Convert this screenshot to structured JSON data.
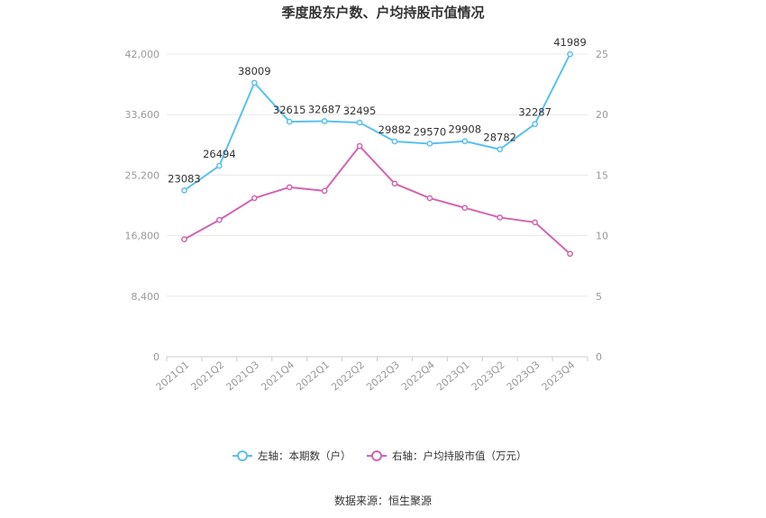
{
  "chart_data": {
    "type": "line",
    "title": "季度股东户数、户均持股市值情况",
    "categories": [
      "2021Q1",
      "2021Q2",
      "2021Q3",
      "2021Q4",
      "2022Q1",
      "2022Q2",
      "2022Q3",
      "2022Q4",
      "2023Q1",
      "2023Q2",
      "2023Q3",
      "2023Q4"
    ],
    "left_axis": {
      "min": 0,
      "max": 42000,
      "ticks": [
        "0",
        "8,400",
        "16,800",
        "25,200",
        "33,600",
        "42,000"
      ],
      "tick_values": [
        0,
        8400,
        16800,
        25200,
        33600,
        42000
      ]
    },
    "right_axis": {
      "min": 0,
      "max": 25,
      "ticks": [
        "0",
        "5",
        "10",
        "15",
        "20",
        "25"
      ],
      "tick_values": [
        0,
        5,
        10,
        15,
        20,
        25
      ]
    },
    "series": [
      {
        "name": "左轴：本期数（户）",
        "axis": "left",
        "color": "#5bc0f0",
        "values": [
          23083,
          26494,
          38009,
          32615,
          32687,
          32495,
          29882,
          29570,
          29908,
          28782,
          32287,
          41989
        ],
        "labels": [
          "23083",
          "26494",
          "38009",
          "32615",
          "32687",
          "32495",
          "29882",
          "29570",
          "29908",
          "28782",
          "32287",
          "41989"
        ]
      },
      {
        "name": "右轴：户均持股市值（万元）",
        "axis": "right",
        "color": "#d364ad",
        "values": [
          9.7,
          11.3,
          13.1,
          14.0,
          13.7,
          17.4,
          14.3,
          13.1,
          12.3,
          11.5,
          11.1,
          8.5
        ]
      }
    ],
    "grid": true,
    "legend_position": "bottom",
    "source": "数据来源：恒生聚源"
  }
}
